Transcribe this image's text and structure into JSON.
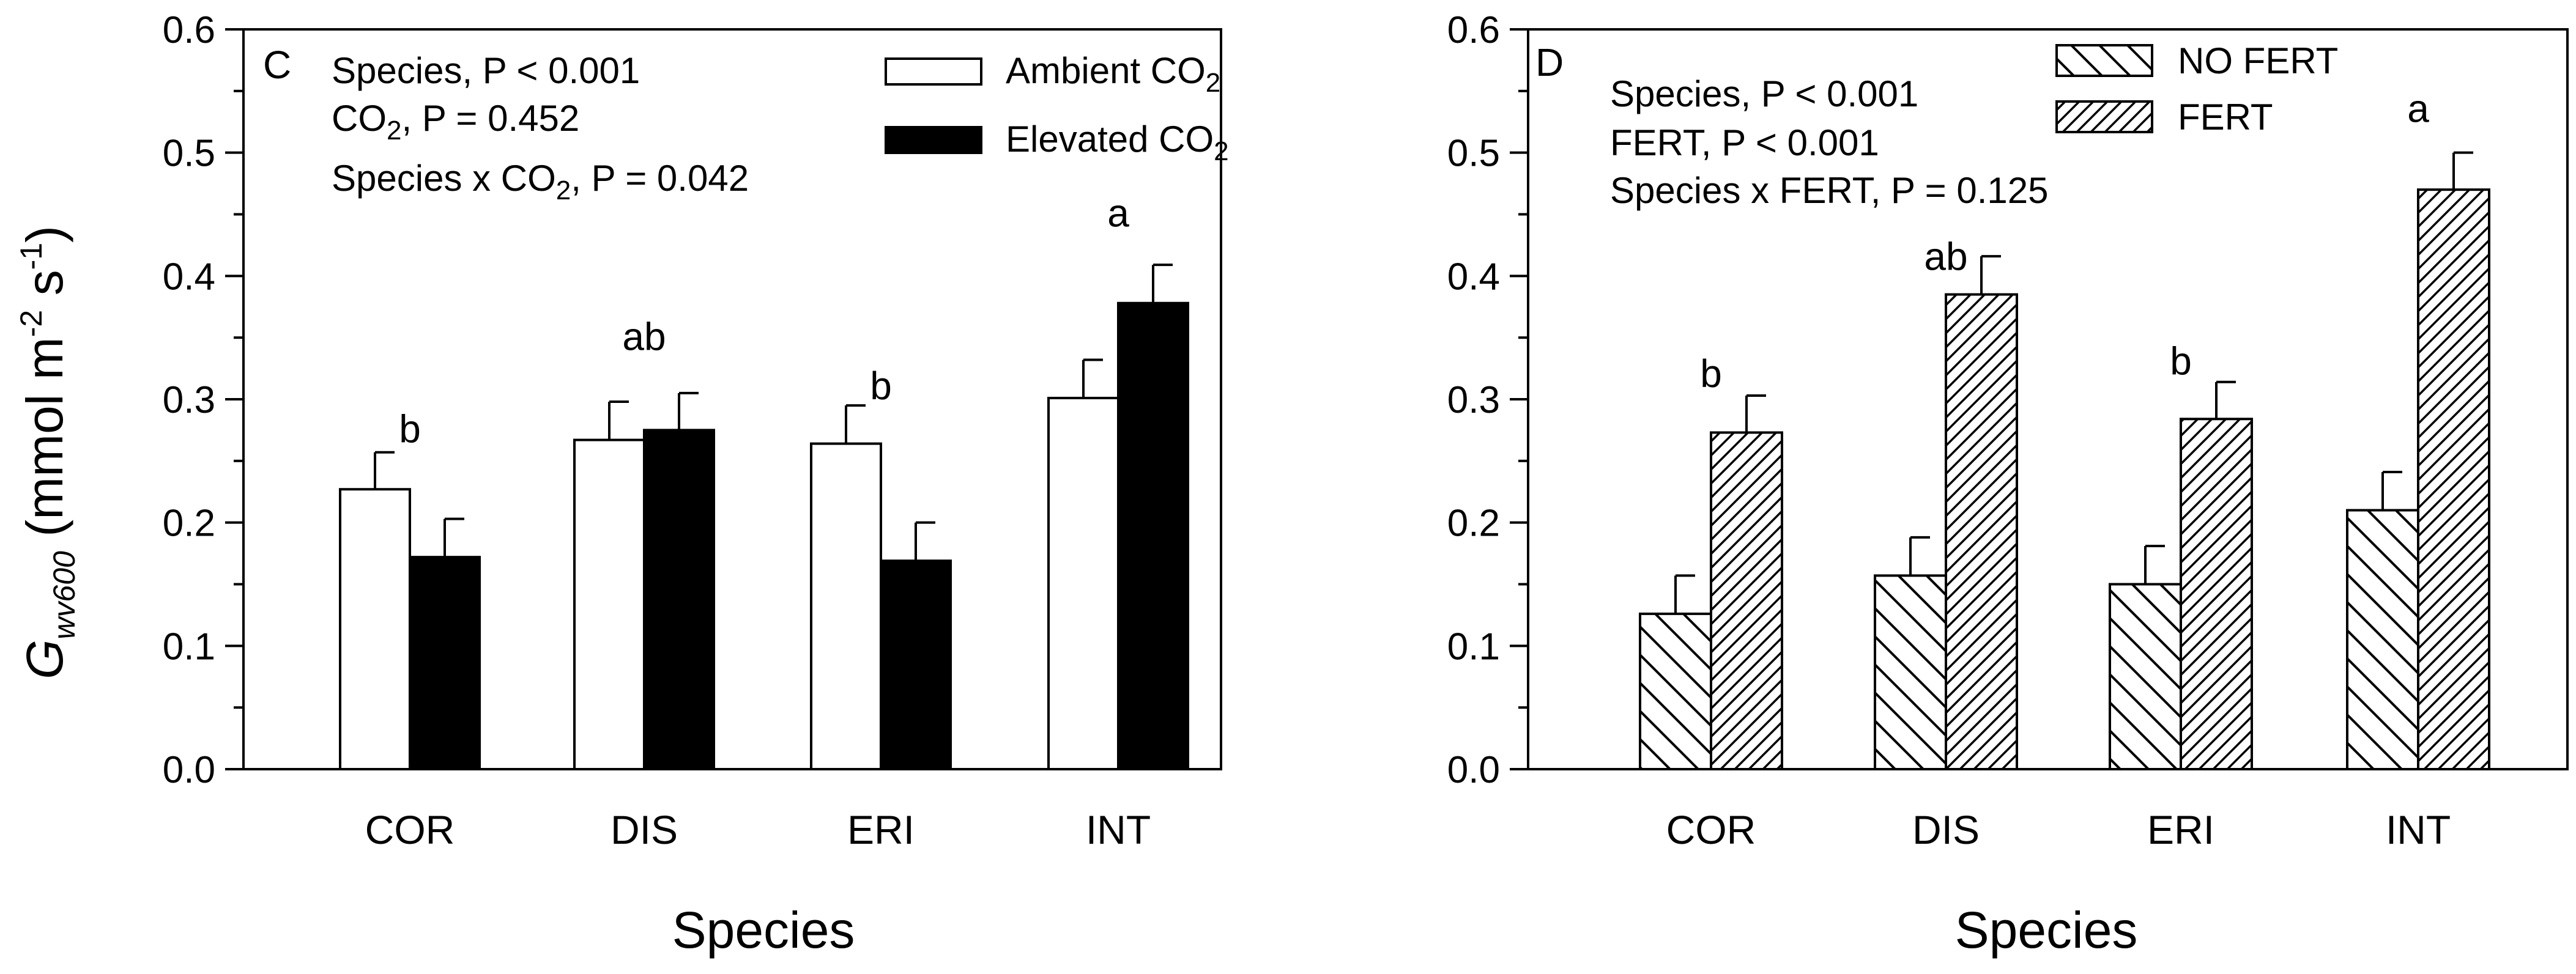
{
  "colors": {
    "ink": "#000000",
    "paper": "#ffffff"
  },
  "y_axis_title": {
    "main": "G",
    "sub": "wv600",
    "units_open": " (mmol m",
    "exp1": "-2",
    "units_mid": " s",
    "exp2": "-1",
    "units_close": ")"
  },
  "chart_data": [
    {
      "type": "bar",
      "panel_label": "C",
      "xlabel": "Species",
      "ylim": [
        0,
        0.6
      ],
      "yticks": [
        "0.0",
        "0.1",
        "0.2",
        "0.3",
        "0.4",
        "0.5",
        "0.6"
      ],
      "categories": [
        "COR",
        "DIS",
        "ERI",
        "INT"
      ],
      "series": [
        {
          "name": "Ambient CO2",
          "fill": "open",
          "values": [
            0.227,
            0.267,
            0.264,
            0.301
          ],
          "errors": [
            0.03,
            0.031,
            0.031,
            0.031
          ]
        },
        {
          "name": "Elevated CO2",
          "fill": "solid",
          "values": [
            0.172,
            0.275,
            0.169,
            0.378
          ],
          "errors": [
            0.031,
            0.03,
            0.031,
            0.031
          ]
        }
      ],
      "legend": [
        {
          "name": "Ambient CO",
          "sub": "2",
          "fill": "open"
        },
        {
          "name": "Elevated CO",
          "sub": "2",
          "fill": "solid"
        }
      ],
      "letters": [
        {
          "text": "b",
          "category": "COR",
          "y": 0.265
        },
        {
          "text": "ab",
          "category": "DIS",
          "y": 0.34
        },
        {
          "text": "b",
          "category": "ERI",
          "y": 0.3
        },
        {
          "text": "a",
          "category": "INT",
          "y": 0.44
        }
      ],
      "stats": [
        {
          "pre": "Species, P < 0.001",
          "sub": "",
          "post": ""
        },
        {
          "pre": "CO",
          "sub": "2",
          "post": ", P = 0.452"
        },
        {
          "pre": "Species x CO",
          "sub": "2",
          "post": ", P = 0.042"
        }
      ]
    },
    {
      "type": "bar",
      "panel_label": "D",
      "xlabel": "Species",
      "ylim": [
        0,
        0.6
      ],
      "yticks": [
        "0.0",
        "0.1",
        "0.2",
        "0.3",
        "0.4",
        "0.5",
        "0.6"
      ],
      "categories": [
        "COR",
        "DIS",
        "ERI",
        "INT"
      ],
      "series": [
        {
          "name": "NO FERT",
          "fill": "hatch-back",
          "values": [
            0.126,
            0.157,
            0.15,
            0.21
          ],
          "errors": [
            0.031,
            0.031,
            0.031,
            0.031
          ]
        },
        {
          "name": "FERT",
          "fill": "hatch-fwd",
          "values": [
            0.273,
            0.385,
            0.284,
            0.47
          ],
          "errors": [
            0.03,
            0.031,
            0.03,
            0.03
          ]
        }
      ],
      "legend": [
        {
          "name": "NO FERT",
          "sub": "",
          "fill": "hatch-back"
        },
        {
          "name": "FERT",
          "sub": "",
          "fill": "hatch-fwd"
        }
      ],
      "letters": [
        {
          "text": "b",
          "category": "COR",
          "y": 0.31
        },
        {
          "text": "ab",
          "category": "DIS",
          "y": 0.405
        },
        {
          "text": "b",
          "category": "ERI",
          "y": 0.32
        },
        {
          "text": "a",
          "category": "INT",
          "y": 0.525
        }
      ],
      "stats": [
        {
          "pre": "Species, P < 0.001",
          "sub": "",
          "post": ""
        },
        {
          "pre": "FERT, P < 0.001",
          "sub": "",
          "post": ""
        },
        {
          "pre": "Species x FERT, P = 0.125",
          "sub": "",
          "post": ""
        }
      ]
    }
  ]
}
